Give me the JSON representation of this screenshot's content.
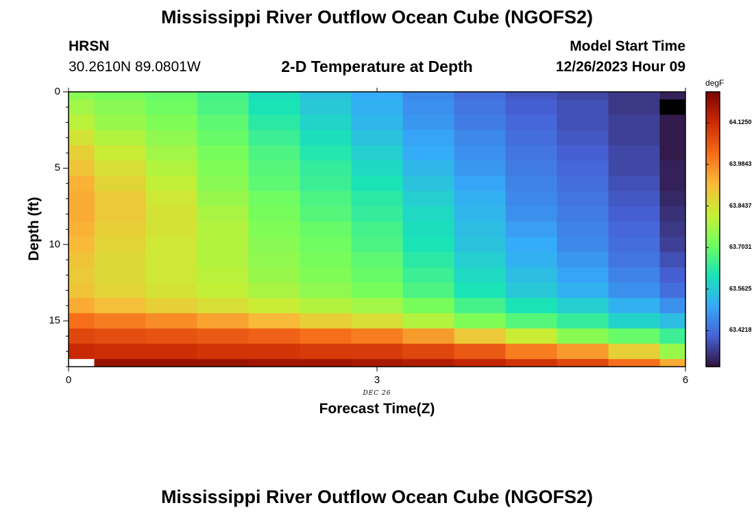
{
  "titles": {
    "main": "Mississippi River Outflow Ocean Cube (NGOFS2)",
    "footer": "Mississippi River Outflow Ocean Cube (NGOFS2)",
    "station": "HRSN",
    "coords": "30.2610N  89.0801W",
    "plot": "2-D Temperature at Depth",
    "model_start_label": "Model Start Time",
    "model_start_value": "12/26/2023 Hour 09"
  },
  "chart_data": {
    "type": "heatmap",
    "xlabel": "Forecast Time(Z)",
    "ylabel": "Depth (ft)",
    "x_ticks": [
      "0",
      "3",
      "6"
    ],
    "x_tick_values": [
      0,
      3,
      6
    ],
    "x_date_label": "DEC 26",
    "y_ticks": [
      "0",
      "5",
      "10",
      "15"
    ],
    "y_tick_values": [
      0,
      5,
      10,
      15
    ],
    "xlim": [
      0,
      6
    ],
    "ylim": [
      18,
      0
    ],
    "colorbar": {
      "units": "degF",
      "tick_labels": [
        "64.1250",
        "63.9843",
        "63.8437",
        "63.7031",
        "63.5625",
        "63.4218"
      ],
      "tick_values": [
        64.125,
        63.9843,
        63.8437,
        63.7031,
        63.5625,
        63.4218
      ],
      "range": [
        63.3,
        64.23
      ],
      "colormap": [
        "#30123b",
        "#4662d7",
        "#36aaf9",
        "#1ae4b6",
        "#72fe5e",
        "#c7ef34",
        "#faba39",
        "#f66b19",
        "#cb2a04",
        "#7a0403"
      ]
    },
    "x_edges": [
      0,
      0.25,
      0.75,
      1.25,
      1.75,
      2.25,
      2.75,
      3.25,
      3.75,
      4.25,
      4.75,
      5.25,
      5.75,
      6
    ],
    "y_edges": [
      0,
      0.5,
      1.5,
      2.5,
      3.5,
      4.5,
      5.5,
      6.5,
      7.5,
      8.5,
      9.5,
      10.5,
      11.5,
      12.5,
      13.5,
      14.5,
      15.5,
      16.5,
      17.5,
      18
    ],
    "values": [
      [
        63.74,
        63.72,
        63.7,
        63.66,
        63.6,
        63.55,
        63.51,
        63.46,
        63.42,
        63.39,
        63.37,
        63.35,
        63.32
      ],
      [
        63.77,
        63.74,
        63.71,
        63.67,
        63.61,
        63.56,
        63.52,
        63.47,
        63.43,
        63.4,
        63.38,
        63.35,
        null
      ],
      [
        63.8,
        63.76,
        63.73,
        63.69,
        63.63,
        63.58,
        63.53,
        63.48,
        63.44,
        63.41,
        63.38,
        63.36,
        63.31
      ],
      [
        63.84,
        63.79,
        63.75,
        63.7,
        63.65,
        63.6,
        63.55,
        63.5,
        63.46,
        63.42,
        63.39,
        63.36,
        63.31
      ],
      [
        63.88,
        63.82,
        63.77,
        63.72,
        63.67,
        63.62,
        63.57,
        63.51,
        63.47,
        63.43,
        63.4,
        63.37,
        63.31
      ],
      [
        63.9,
        63.85,
        63.79,
        63.73,
        63.68,
        63.64,
        63.59,
        63.53,
        63.48,
        63.44,
        63.41,
        63.37,
        63.32
      ],
      [
        63.93,
        63.87,
        63.81,
        63.74,
        63.69,
        63.65,
        63.61,
        63.55,
        63.5,
        63.45,
        63.42,
        63.38,
        63.32
      ],
      [
        63.94,
        63.89,
        63.83,
        63.76,
        63.71,
        63.67,
        63.63,
        63.57,
        63.52,
        63.46,
        63.43,
        63.39,
        63.33
      ],
      [
        63.94,
        63.89,
        63.84,
        63.78,
        63.72,
        63.68,
        63.64,
        63.59,
        63.53,
        63.47,
        63.44,
        63.4,
        63.34
      ],
      [
        63.93,
        63.88,
        63.84,
        63.79,
        63.73,
        63.7,
        63.66,
        63.6,
        63.54,
        63.49,
        63.45,
        63.41,
        63.35
      ],
      [
        63.92,
        63.87,
        63.83,
        63.79,
        63.74,
        63.71,
        63.67,
        63.61,
        63.55,
        63.51,
        63.46,
        63.42,
        63.36
      ],
      [
        63.9,
        63.86,
        63.83,
        63.79,
        63.75,
        63.72,
        63.69,
        63.63,
        63.57,
        63.52,
        63.48,
        63.43,
        63.38
      ],
      [
        63.89,
        63.86,
        63.83,
        63.8,
        63.76,
        63.73,
        63.7,
        63.65,
        63.59,
        63.54,
        63.5,
        63.45,
        63.4
      ],
      [
        63.9,
        63.87,
        63.84,
        63.81,
        63.78,
        63.75,
        63.72,
        63.67,
        63.61,
        63.56,
        63.52,
        63.47,
        63.42
      ],
      [
        63.94,
        63.91,
        63.88,
        63.85,
        63.82,
        63.79,
        63.77,
        63.72,
        63.66,
        63.61,
        63.57,
        63.52,
        63.47
      ],
      [
        64.02,
        64.0,
        63.98,
        63.95,
        63.92,
        63.88,
        63.85,
        63.79,
        63.73,
        63.68,
        63.64,
        63.58,
        63.54
      ],
      [
        64.08,
        64.07,
        64.06,
        64.05,
        64.04,
        64.02,
        64.0,
        63.96,
        63.89,
        63.82,
        63.74,
        63.7,
        63.65
      ],
      [
        64.13,
        64.12,
        64.12,
        64.11,
        64.11,
        64.1,
        64.1,
        64.08,
        64.05,
        64.0,
        63.96,
        63.88,
        63.76
      ],
      [
        null,
        64.19,
        64.19,
        64.19,
        64.18,
        64.18,
        64.17,
        64.16,
        64.14,
        64.11,
        64.08,
        64.02,
        63.94
      ]
    ]
  }
}
